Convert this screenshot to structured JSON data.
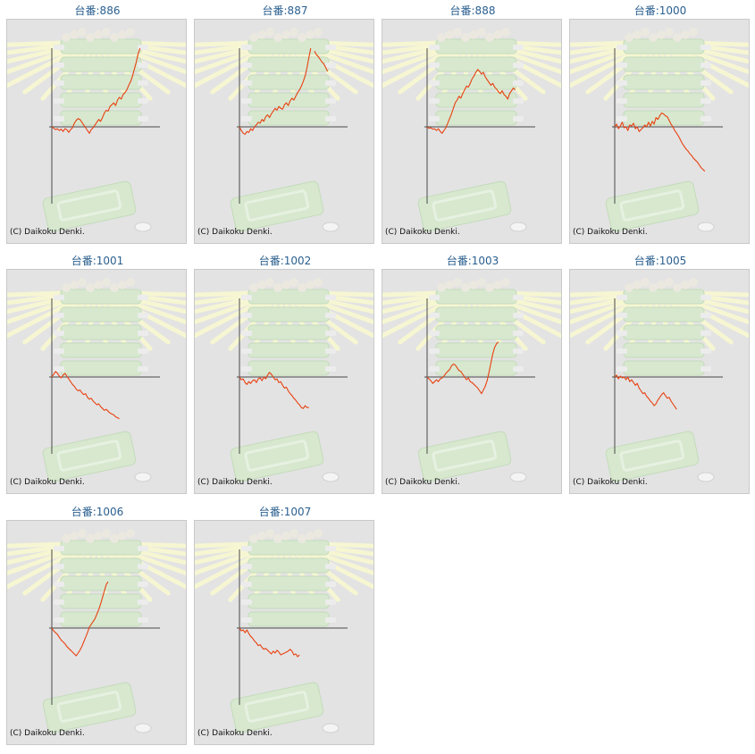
{
  "colors": {
    "line": "#e8400f",
    "axis": "#4a4a4a",
    "title": "#2a5f8f",
    "panel_bg": "#e3e3e3",
    "panel_border": "#c9c9c9"
  },
  "chart_data": [
    {
      "type": "line",
      "title": "台番:886",
      "credit": "(C) Daikoku Denki.",
      "values": [
        0,
        -3,
        -6,
        -4,
        -8,
        -5,
        -10,
        -4,
        -6,
        -12,
        -6,
        -2,
        8,
        14,
        18,
        16,
        10,
        4,
        -2,
        -8,
        -14,
        -6,
        -2,
        4,
        10,
        16,
        12,
        20,
        30,
        36,
        34,
        44,
        48,
        52,
        46,
        58,
        64,
        60,
        70,
        74,
        80,
        90,
        98,
        110,
        125,
        140,
        158,
        170
      ]
    },
    {
      "type": "line",
      "title": "台番:887",
      "credit": "(C) Daikoku Denki.",
      "values": [
        0,
        -8,
        -14,
        -16,
        -10,
        -12,
        -4,
        -8,
        0,
        4,
        10,
        8,
        16,
        12,
        22,
        26,
        20,
        28,
        34,
        40,
        36,
        44,
        40,
        38,
        48,
        52,
        46,
        56,
        62,
        58,
        66,
        74,
        80,
        88,
        98,
        110,
        128,
        150,
        170,
        null,
        164,
        156,
        152,
        146,
        140,
        136,
        128,
        120
      ]
    },
    {
      "type": "line",
      "title": "台番:888",
      "credit": "(C) Daikoku Denki.",
      "values": [
        0,
        -3,
        -2,
        -5,
        -4,
        -8,
        -4,
        -10,
        -14,
        -8,
        -2,
        8,
        18,
        28,
        40,
        52,
        58,
        66,
        62,
        72,
        80,
        88,
        86,
        94,
        104,
        110,
        118,
        124,
        120,
        114,
        118,
        108,
        102,
        96,
        90,
        94,
        86,
        82,
        76,
        72,
        78,
        70,
        66,
        60,
        72,
        78,
        84,
        80
      ]
    },
    {
      "type": "line",
      "title": "台番:1000",
      "credit": "(C) Daikoku Denki.",
      "values": [
        0,
        6,
        -4,
        2,
        10,
        -2,
        0,
        -8,
        4,
        2,
        8,
        -4,
        0,
        -10,
        -6,
        -2,
        4,
        0,
        10,
        2,
        12,
        6,
        20,
        16,
        24,
        30,
        28,
        24,
        22,
        14,
        6,
        0,
        -8,
        -14,
        -20,
        -28,
        -36,
        -42,
        -48,
        -52,
        -58,
        -62,
        -68,
        -72,
        -76,
        -82,
        -88,
        -92,
        -96
      ]
    },
    {
      "type": "line",
      "title": "台番:1001",
      "credit": "(C) Daikoku Denki.",
      "values": [
        0,
        6,
        12,
        8,
        2,
        -2,
        4,
        8,
        2,
        -4,
        -10,
        -16,
        -20,
        -26,
        -30,
        -28,
        -34,
        -38,
        -36,
        -44,
        -48,
        -46,
        -52,
        -56,
        -60,
        -58,
        -64,
        -68,
        -72,
        -70,
        -74,
        -78,
        -80,
        -82,
        -86,
        -88,
        -90
      ]
    },
    {
      "type": "line",
      "title": "台番:1002",
      "credit": "(C) Daikoku Denki.",
      "values": [
        0,
        -6,
        -4,
        -12,
        -16,
        -10,
        -14,
        -8,
        -6,
        -12,
        -4,
        -2,
        -8,
        0,
        -4,
        4,
        10,
        6,
        0,
        -6,
        -4,
        -12,
        -10,
        -18,
        -24,
        -22,
        -30,
        -36,
        -40,
        -46,
        -50,
        -56,
        -60,
        -66,
        -68,
        -62,
        -66,
        -66
      ]
    },
    {
      "type": "line",
      "title": "台番:1003",
      "credit": "(C) Daikoku Denki.",
      "values": [
        0,
        -4,
        -8,
        -14,
        -10,
        -6,
        -10,
        -4,
        -2,
        2,
        8,
        12,
        16,
        24,
        28,
        26,
        20,
        14,
        12,
        6,
        0,
        -6,
        -2,
        -10,
        -12,
        -16,
        -20,
        -24,
        -30,
        -36,
        -28,
        -20,
        -8,
        10,
        30,
        50,
        64,
        72,
        76
      ]
    },
    {
      "type": "line",
      "title": "台番:1005",
      "credit": "(C) Daikoku Denki.",
      "values": [
        0,
        4,
        -4,
        2,
        -2,
        0,
        -6,
        0,
        -10,
        -6,
        -12,
        -18,
        -14,
        -24,
        -30,
        -36,
        -34,
        -42,
        -46,
        -52,
        -56,
        -62,
        -58,
        -50,
        -44,
        -38,
        -34,
        -40,
        -46,
        -44,
        -52,
        -58,
        -64,
        -70
      ]
    },
    {
      "type": "line",
      "title": "台番:1006",
      "credit": "(C) Daikoku Denki.",
      "values": [
        0,
        -6,
        -10,
        -14,
        -20,
        -26,
        -30,
        -34,
        -40,
        -44,
        -48,
        -52,
        -56,
        -60,
        -54,
        -48,
        -40,
        -30,
        -20,
        -10,
        2,
        8,
        14,
        20,
        30,
        40,
        52,
        66,
        80,
        94,
        100
      ]
    },
    {
      "type": "line",
      "title": "台番:1007",
      "credit": "(C) Daikoku Denki.",
      "values": [
        0,
        -6,
        -4,
        -10,
        -4,
        -12,
        -18,
        -22,
        -28,
        -32,
        -38,
        -36,
        -42,
        -46,
        -44,
        -48,
        -52,
        -56,
        -50,
        -54,
        -48,
        -52,
        -58,
        -56,
        -54,
        -52,
        -50,
        -46,
        -50,
        -58,
        -56,
        -62,
        -58
      ]
    }
  ]
}
